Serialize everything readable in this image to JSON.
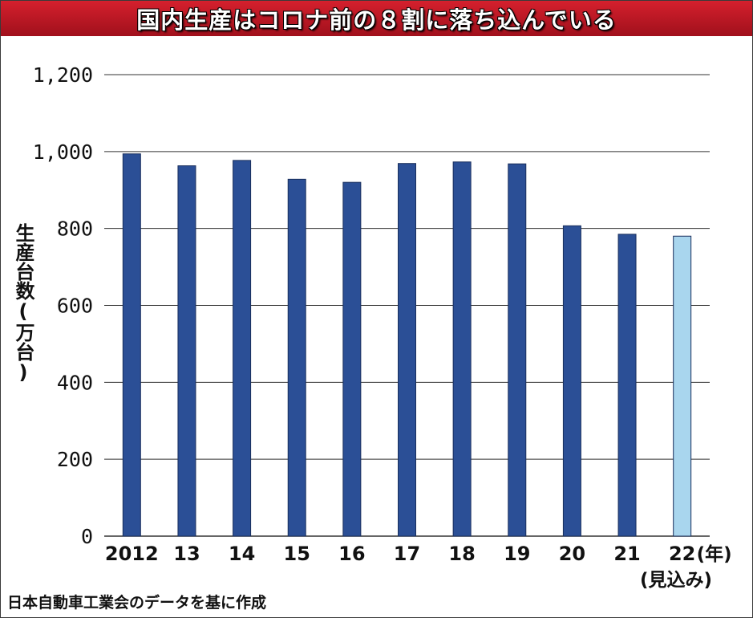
{
  "title": "国内生産はコロナ前の８割に落ち込んでいる",
  "source": "日本自動車工業会のデータを基に作成",
  "colors": {
    "title_bg": "#c0141f",
    "bar": "#2b4f96",
    "bar_forecast": "#a9d6ee",
    "grid": "#333333"
  },
  "chart_data": {
    "type": "bar",
    "title": "国内生産はコロナ前の８割に落ち込んでいる",
    "ylabel": "生産台数(万台)",
    "xunit": "(年)",
    "forecast_note": "(見込み)",
    "ylim": [
      0,
      1200
    ],
    "yticks": [
      0,
      200,
      400,
      600,
      800,
      1000,
      1200
    ],
    "ytick_labels": [
      "0",
      "200",
      "400",
      "600",
      "800",
      "1,000",
      "1,200"
    ],
    "categories": [
      "2012",
      "13",
      "14",
      "15",
      "16",
      "17",
      "18",
      "19",
      "20",
      "21",
      "22"
    ],
    "values": [
      994,
      963,
      977,
      928,
      920,
      969,
      973,
      968,
      807,
      785,
      780
    ],
    "forecast": [
      false,
      false,
      false,
      false,
      false,
      false,
      false,
      false,
      false,
      false,
      true
    ],
    "grid": true
  }
}
